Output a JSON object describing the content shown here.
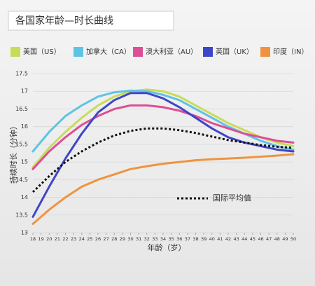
{
  "chart_data": {
    "type": "line",
    "title": "各国家年龄—时长曲线",
    "x_label": "年龄（岁）",
    "y_label": "持续时长（分钟）",
    "x": [
      18,
      20,
      22,
      24,
      26,
      28,
      30,
      32,
      34,
      36,
      38,
      40,
      42,
      44,
      46,
      48,
      50
    ],
    "series": [
      {
        "name": "美国（US）",
        "color": "#c8dc5a",
        "values": [
          14.85,
          15.4,
          15.85,
          16.25,
          16.6,
          16.85,
          17.0,
          17.05,
          17.0,
          16.85,
          16.6,
          16.35,
          16.1,
          15.9,
          15.7,
          15.55,
          15.45
        ]
      },
      {
        "name": "加拿大（CA）",
        "color": "#5fc3e4",
        "values": [
          15.3,
          15.85,
          16.3,
          16.6,
          16.85,
          16.97,
          17.02,
          17.0,
          16.9,
          16.75,
          16.5,
          16.25,
          16.0,
          15.8,
          15.6,
          15.45,
          15.35
        ]
      },
      {
        "name": "澳大利亚（AU）",
        "color": "#dc4f94",
        "values": [
          14.8,
          15.3,
          15.7,
          16.05,
          16.3,
          16.5,
          16.6,
          16.6,
          16.55,
          16.45,
          16.3,
          16.1,
          15.95,
          15.8,
          15.7,
          15.6,
          15.55
        ]
      },
      {
        "name": "英国（UK）",
        "color": "#3e46c8",
        "values": [
          13.45,
          14.3,
          15.1,
          15.8,
          16.4,
          16.75,
          16.95,
          16.95,
          16.8,
          16.55,
          16.25,
          15.95,
          15.7,
          15.55,
          15.45,
          15.35,
          15.3
        ]
      },
      {
        "name": "印度（IN）",
        "color": "#ee9440",
        "values": [
          13.25,
          13.65,
          14.0,
          14.3,
          14.5,
          14.65,
          14.8,
          14.88,
          14.95,
          15.0,
          15.05,
          15.08,
          15.1,
          15.12,
          15.15,
          15.18,
          15.22
        ]
      },
      {
        "name": "国际平均值",
        "color": "#111111",
        "style": "dotted",
        "values": [
          14.15,
          14.6,
          15.0,
          15.3,
          15.55,
          15.75,
          15.88,
          15.95,
          15.95,
          15.9,
          15.82,
          15.72,
          15.62,
          15.55,
          15.48,
          15.43,
          15.4
        ]
      }
    ],
    "xlim": [
      18,
      50
    ],
    "xticks": [
      18,
      19,
      20,
      21,
      22,
      23,
      24,
      25,
      26,
      27,
      28,
      29,
      30,
      31,
      32,
      33,
      34,
      35,
      36,
      37,
      38,
      39,
      40,
      41,
      42,
      43,
      44,
      45,
      46,
      47,
      48,
      49,
      50
    ],
    "ylim": [
      13,
      17.5
    ],
    "yticks": [
      13,
      13.5,
      14,
      14.5,
      15,
      15.5,
      16,
      16.5,
      17,
      17.5
    ],
    "grid": true
  }
}
